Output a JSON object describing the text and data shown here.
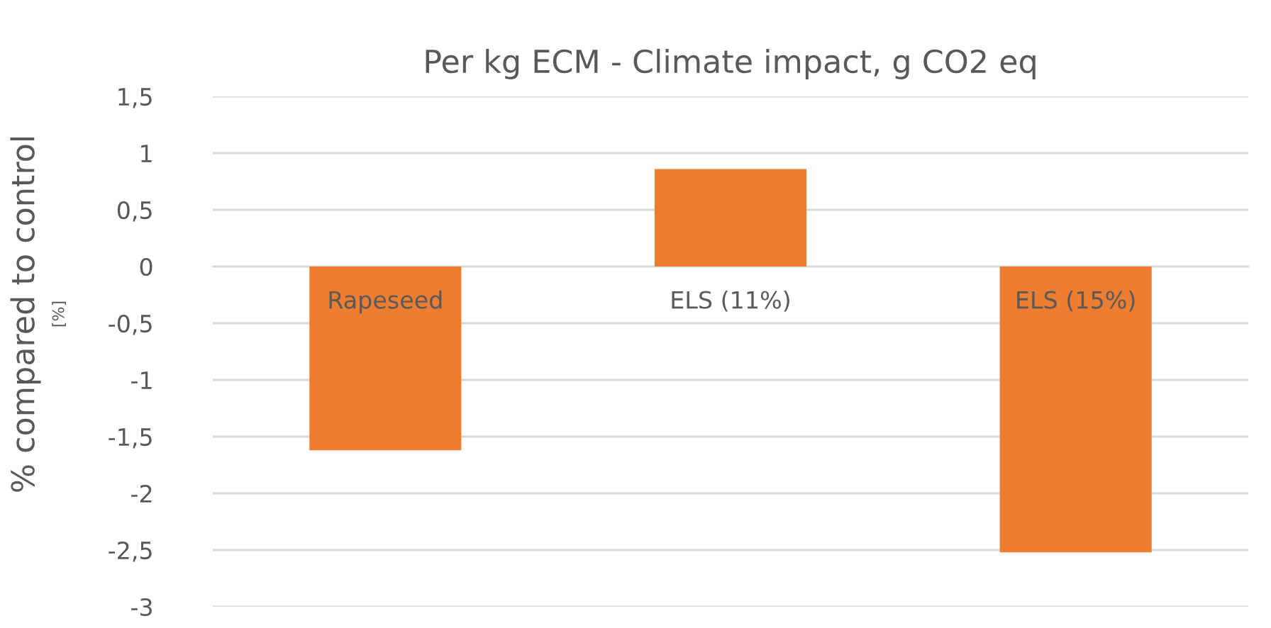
{
  "chart_data": {
    "type": "bar",
    "title": "Per kg ECM - Climate impact, g CO2 eq",
    "ylabel": "% compared to control",
    "annotations": [
      "[%]"
    ],
    "categories": [
      "Rapeseed",
      "ELS (11%)",
      "ELS (15%)"
    ],
    "values": [
      -1.62,
      0.86,
      -2.52
    ],
    "color": "#ed7d31",
    "ylim": [
      -3,
      1.5
    ],
    "yticks": [
      {
        "value": -3,
        "label": "-3"
      },
      {
        "value": -2.5,
        "label": "-2,5"
      },
      {
        "value": -2,
        "label": "-2"
      },
      {
        "value": -1.5,
        "label": "-1,5"
      },
      {
        "value": -1,
        "label": "-1"
      },
      {
        "value": -0.5,
        "label": "-0,5"
      },
      {
        "value": 0,
        "label": "0"
      },
      {
        "value": 0.5,
        "label": "0,5"
      },
      {
        "value": 1,
        "label": "1"
      },
      {
        "value": 1.5,
        "label": "1,5"
      }
    ],
    "grid": "y",
    "legend": false
  }
}
